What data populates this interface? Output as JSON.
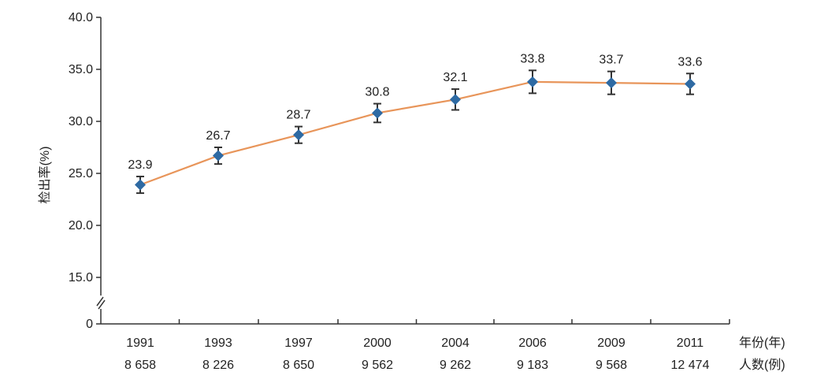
{
  "chart_data": {
    "type": "line",
    "title": "",
    "ylabel": "检出率(%)",
    "xlabel_rows": [
      "年份(年)",
      "人数(例)"
    ],
    "categories": [
      "1991",
      "1993",
      "1997",
      "2000",
      "2004",
      "2006",
      "2009",
      "2011"
    ],
    "sample_sizes": [
      "8 658",
      "8 226",
      "8 650",
      "9 562",
      "9 262",
      "9 183",
      "9 568",
      "12 474"
    ],
    "series": [
      {
        "values": [
          23.9,
          26.7,
          28.7,
          30.8,
          32.1,
          33.8,
          33.7,
          33.6
        ],
        "error": [
          0.8,
          0.8,
          0.8,
          0.9,
          1.0,
          1.1,
          1.1,
          1.0
        ],
        "data_labels": [
          "23.9",
          "26.7",
          "28.7",
          "30.8",
          "32.1",
          "33.8",
          "33.7",
          "33.6"
        ]
      }
    ],
    "y_ticks": [
      "0",
      "15.0",
      "20.0",
      "25.0",
      "30.0",
      "35.0",
      "40.0"
    ],
    "ylim": [
      15,
      40
    ],
    "y_axis_break": true,
    "grid": false,
    "colors": {
      "line": "#e8955a",
      "marker": "#2e6aa3",
      "error_bar": "#333333",
      "axis": "#333333"
    }
  }
}
